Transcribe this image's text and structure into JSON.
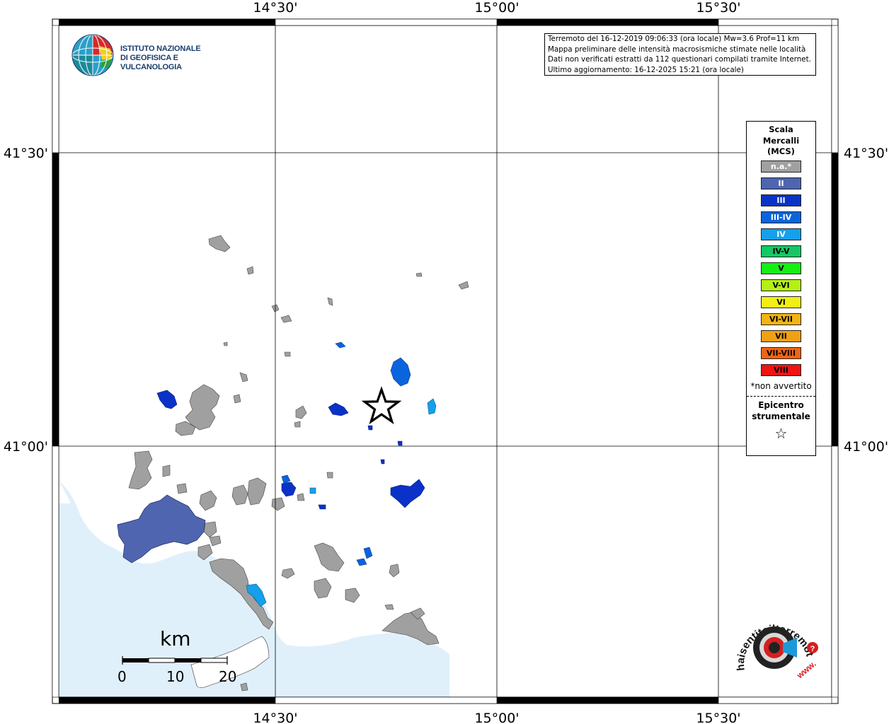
{
  "map": {
    "top_longitude_labels": [
      "14°30'",
      "15°00'",
      "15°30'"
    ],
    "bottom_longitude_labels": [
      "14°30'",
      "15°00'",
      "15°30'"
    ],
    "left_latitude_labels": [
      "41°30'",
      "41°00'"
    ],
    "right_latitude_labels": [
      "41°30'",
      "41°00'"
    ],
    "sea_color": "#e0f0fb",
    "unfelt_color": "#a0a0a0"
  },
  "info": {
    "line1": "Terremoto del 16-12-2019 09:06:33 (ora locale) Mw=3.6 Prof=11 km",
    "line2": "Mappa preliminare delle intensità macrosismiche stimate nelle località",
    "line3": "Dati non verificati estratti da 112 questionari compilati tramite Internet.",
    "line4": "Ultimo aggiornamento: 16-12-2025 15:21 (ora locale)"
  },
  "logo": {
    "line1": "ISTITUTO NAZIONALE",
    "line2": "DI GEOFISICA E VULCANOLOGIA"
  },
  "legend": {
    "title1": "Scala",
    "title2": "Mercalli",
    "title3": "(MCS)",
    "items": [
      {
        "label": "n.a.*",
        "color": "#a0a0a0",
        "text_color": "#ffffff"
      },
      {
        "label": "II",
        "color": "#4f65b0",
        "text_color": "#ffffff"
      },
      {
        "label": "III",
        "color": "#0a32c8",
        "text_color": "#ffffff"
      },
      {
        "label": "III-IV",
        "color": "#0a64dc",
        "text_color": "#ffffff"
      },
      {
        "label": "IV",
        "color": "#14a0eb",
        "text_color": "#ffffff"
      },
      {
        "label": "IV-V",
        "color": "#14c864",
        "text_color": "#000000"
      },
      {
        "label": "V",
        "color": "#14f014",
        "text_color": "#000000"
      },
      {
        "label": "V-VI",
        "color": "#b4f014",
        "text_color": "#000000"
      },
      {
        "label": "VI",
        "color": "#f0f014",
        "text_color": "#000000"
      },
      {
        "label": "VI-VII",
        "color": "#f0b414",
        "text_color": "#000000"
      },
      {
        "label": "VII",
        "color": "#f0a014",
        "text_color": "#000000"
      },
      {
        "label": "VII-VIII",
        "color": "#f06414",
        "text_color": "#000000"
      },
      {
        "label": "VIII",
        "color": "#f01414",
        "text_color": "#000000"
      }
    ],
    "note": "*non avvertito",
    "epicenter1": "Epicentro",
    "epicenter2": "strumentale",
    "epicenter_symbol": "☆"
  },
  "scale_bar": {
    "unit": "km",
    "labels": [
      "0",
      "10",
      "20"
    ]
  },
  "haisentito": {
    "brand": "haisentitoilterremoto.it",
    "prefix": "www."
  }
}
